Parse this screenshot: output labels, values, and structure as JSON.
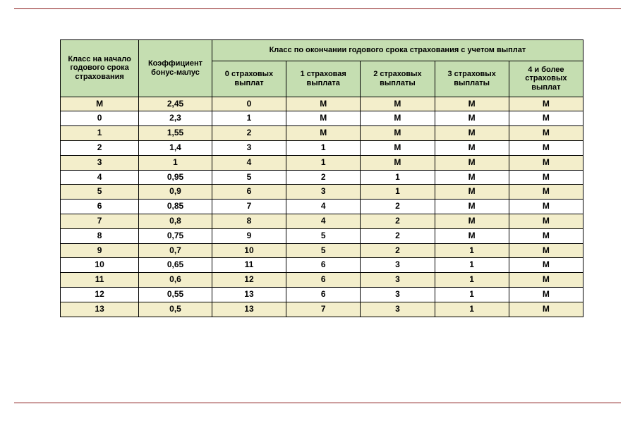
{
  "colors": {
    "header_bg": "#c5deb1",
    "row_odd_bg": "#f3eecb",
    "row_even_bg": "#ffffff",
    "border": "#000000",
    "rule": "#8a1c1c"
  },
  "headers": {
    "col_start_class": "Класс на начало годового срока страхования",
    "col_coeff": "Коэффициент бонус-малус",
    "col_end_class_group": "Класс по окончании годового срока страхования с учетом выплат",
    "sub": {
      "p0": "0 страховых выплат",
      "p1": "1 страховая выплата",
      "p2": "2 страховых выплаты",
      "p3": "3 страховых выплаты",
      "p4": "4 и более страховых выплат"
    }
  },
  "rows": [
    {
      "start": "М",
      "coeff": "2,45",
      "p0": "0",
      "p1": "М",
      "p2": "М",
      "p3": "М",
      "p4": "М"
    },
    {
      "start": "0",
      "coeff": "2,3",
      "p0": "1",
      "p1": "М",
      "p2": "М",
      "p3": "М",
      "p4": "М"
    },
    {
      "start": "1",
      "coeff": "1,55",
      "p0": "2",
      "p1": "М",
      "p2": "М",
      "p3": "М",
      "p4": "М"
    },
    {
      "start": "2",
      "coeff": "1,4",
      "p0": "3",
      "p1": "1",
      "p2": "М",
      "p3": "М",
      "p4": "М"
    },
    {
      "start": "3",
      "coeff": "1",
      "p0": "4",
      "p1": "1",
      "p2": "М",
      "p3": "М",
      "p4": "М"
    },
    {
      "start": "4",
      "coeff": "0,95",
      "p0": "5",
      "p1": "2",
      "p2": "1",
      "p3": "М",
      "p4": "М"
    },
    {
      "start": "5",
      "coeff": "0,9",
      "p0": "6",
      "p1": "3",
      "p2": "1",
      "p3": "М",
      "p4": "М"
    },
    {
      "start": "6",
      "coeff": "0,85",
      "p0": "7",
      "p1": "4",
      "p2": "2",
      "p3": "М",
      "p4": "М"
    },
    {
      "start": "7",
      "coeff": "0,8",
      "p0": "8",
      "p1": "4",
      "p2": "2",
      "p3": "М",
      "p4": "М"
    },
    {
      "start": "8",
      "coeff": "0,75",
      "p0": "9",
      "p1": "5",
      "p2": "2",
      "p3": "М",
      "p4": "М"
    },
    {
      "start": "9",
      "coeff": "0,7",
      "p0": "10",
      "p1": "5",
      "p2": "2",
      "p3": "1",
      "p4": "М"
    },
    {
      "start": "10",
      "coeff": "0,65",
      "p0": "11",
      "p1": "6",
      "p2": "3",
      "p3": "1",
      "p4": "М"
    },
    {
      "start": "11",
      "coeff": "0,6",
      "p0": "12",
      "p1": "6",
      "p2": "3",
      "p3": "1",
      "p4": "М"
    },
    {
      "start": "12",
      "coeff": "0,55",
      "p0": "13",
      "p1": "6",
      "p2": "3",
      "p3": "1",
      "p4": "М"
    },
    {
      "start": "13",
      "coeff": "0,5",
      "p0": "13",
      "p1": "7",
      "p2": "3",
      "p3": "1",
      "p4": "М"
    }
  ]
}
